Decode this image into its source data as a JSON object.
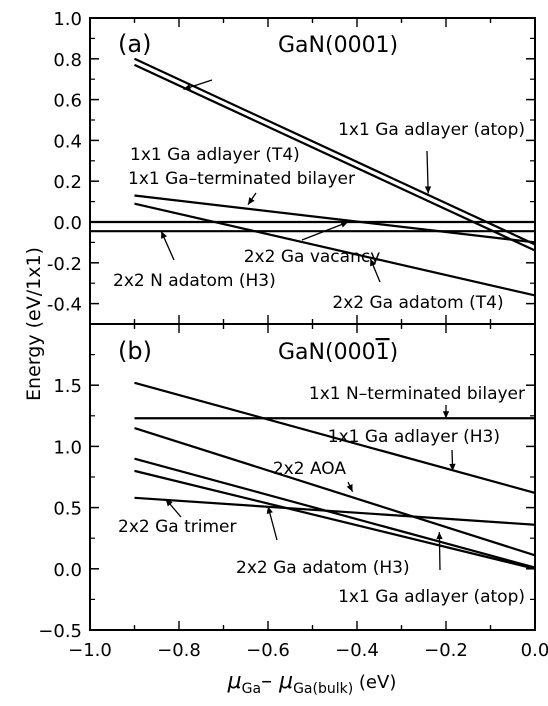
{
  "chart_data": [
    {
      "panel": "(a)",
      "type": "line",
      "title": "GaN(0001)",
      "xlim": [
        -1.0,
        0.0
      ],
      "ylim": [
        -0.5,
        1.0
      ],
      "yticks": [
        -0.4,
        -0.2,
        0.0,
        0.2,
        0.4,
        0.6,
        0.8,
        1.0
      ],
      "ytick_labels": [
        "-0.4",
        "-0.2",
        "0.0",
        "0.2",
        "0.4",
        "0.6",
        "0.8",
        "1.0"
      ],
      "series": [
        {
          "name": "1x1 Ga adlayer (T4)",
          "x": [
            -0.9,
            0.0
          ],
          "y": [
            0.77,
            -0.14
          ]
        },
        {
          "name": "1x1 Ga adlayer (atop)",
          "x": [
            -0.9,
            0.0
          ],
          "y": [
            0.8,
            -0.11
          ]
        },
        {
          "name": "1x1 Ga-terminated bilayer",
          "x": [
            -0.9,
            0.0
          ],
          "y": [
            0.13,
            -0.1
          ]
        },
        {
          "name": "2x2 Ga vacancy",
          "x": [
            -1.0,
            0.0
          ],
          "y": [
            0.0,
            0.0
          ]
        },
        {
          "name": "2x2 N adatom (H3)",
          "x": [
            -1.0,
            0.0
          ],
          "y": [
            -0.045,
            -0.045
          ]
        },
        {
          "name": "2x2 Ga adatom (T4)",
          "x": [
            -0.9,
            0.0
          ],
          "y": [
            0.09,
            -0.36
          ]
        }
      ],
      "annotations": [
        {
          "text": "1x1 Ga adlayer (T4)",
          "arrow_x": -0.79,
          "arrow_y": 0.65
        },
        {
          "text": "1x1 Ga adlayer (atop)",
          "arrow_x": -0.24,
          "arrow_y": 0.14
        },
        {
          "text": "1x1 Ga–terminated bilayer",
          "arrow_x": -0.645,
          "arrow_y": 0.085
        },
        {
          "text": "2x2 Ga vacancy",
          "arrow_x": -0.42,
          "arrow_y": 0.0
        },
        {
          "text": "2x2 N adatom (H3)",
          "arrow_x": -0.84,
          "arrow_y": -0.045
        },
        {
          "text": "2x2 Ga adatom (T4)",
          "arrow_x": -0.37,
          "arrow_y": -0.18
        }
      ]
    },
    {
      "panel": "(b)",
      "type": "line",
      "title": "GaN(0001̄)",
      "title_main": "GaN(000",
      "title_overbar": "1",
      "title_end": ")",
      "xlim": [
        -1.0,
        0.0
      ],
      "ylim": [
        -0.5,
        2.0
      ],
      "xticks": [
        -1.0,
        -0.8,
        -0.6,
        -0.4,
        -0.2,
        0.0
      ],
      "xtick_labels": [
        "−1.0",
        "−0.8",
        "−0.6",
        "−0.4",
        "−0.2",
        "0.0"
      ],
      "yticks": [
        -0.5,
        0.0,
        0.5,
        1.0,
        1.5
      ],
      "ytick_labels": [
        "−0.5",
        "0.0",
        "0.5",
        "1.0",
        "1.5"
      ],
      "series": [
        {
          "name": "1x1 N-terminated bilayer",
          "x": [
            -0.9,
            0.0
          ],
          "y": [
            1.23,
            1.23
          ]
        },
        {
          "name": "1x1 Ga adlayer (H3)",
          "x": [
            -0.9,
            0.0
          ],
          "y": [
            1.52,
            0.62
          ]
        },
        {
          "name": "2x2 AOA",
          "x": [
            -0.9,
            0.0
          ],
          "y": [
            1.15,
            0.11
          ]
        },
        {
          "name": "2x2 Ga trimer",
          "x": [
            -0.9,
            0.0
          ],
          "y": [
            0.58,
            0.36
          ]
        },
        {
          "name": "2x2 Ga adatom (H3)",
          "x": [
            -0.9,
            0.0
          ],
          "y": [
            0.9,
            0.01
          ]
        },
        {
          "name": "1x1 Ga adlayer (atop)",
          "x": [
            -0.9,
            0.0
          ],
          "y": [
            0.8,
            0.0
          ]
        }
      ],
      "annotations": [
        {
          "text": "1x1 N–terminated bilayer",
          "arrow_x": -0.2,
          "arrow_y": 1.23
        },
        {
          "text": "1x1 Ga adlayer (H3)",
          "arrow_x": -0.185,
          "arrow_y": 0.8
        },
        {
          "text": "2x2 AOA",
          "arrow_x": -0.41,
          "arrow_y": 0.63
        },
        {
          "text": "2x2 Ga trimer",
          "arrow_x": -0.83,
          "arrow_y": 0.57
        },
        {
          "text": "2x2 Ga adatom (H3)",
          "arrow_x": -0.6,
          "arrow_y": 0.51
        },
        {
          "text": "1x1 Ga adlayer (atop)",
          "arrow_x": -0.215,
          "arrow_y": 0.3
        }
      ]
    }
  ],
  "ylabel": "Energy (eV/1x1)",
  "xlabel": {
    "mu": "μ",
    "sub1": "Ga",
    "dash": "– ",
    "mu2": "μ",
    "sub2": "Ga(bulk)",
    "unit": " (eV)"
  }
}
